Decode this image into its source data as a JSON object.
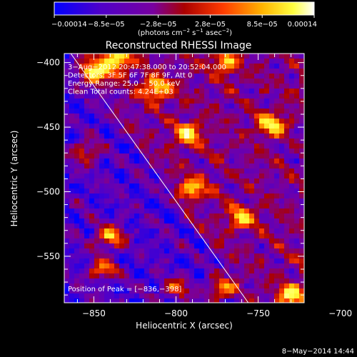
{
  "chart_data": {
    "type": "heatmap",
    "title": "Reconstructed RHESSI Image",
    "xlabel": "Heliocentric X (arcsec)",
    "ylabel": "Heliocentric Y (arcsec)",
    "xlim": [
      -868,
      -722
    ],
    "ylim": [
      -586,
      -393
    ],
    "x_ticks": [
      -850,
      -800,
      -750,
      -700
    ],
    "x_tick_labels": [
      "−850",
      "−800",
      "−750",
      "−700"
    ],
    "y_ticks": [
      -400,
      -450,
      -500,
      -550
    ],
    "y_tick_labels": [
      "−400",
      "−450",
      "−500",
      "−550"
    ],
    "colorbar": {
      "range": [
        -0.00014,
        0.00014
      ],
      "tick_labels": [
        "−0.00014",
        "−8.5e−05",
        "−2.8e−05",
        "2.8e−05",
        "8.5e−05",
        "0.00014"
      ],
      "unit_main": "(photons cm",
      "unit_sup1": "−2",
      "unit_mid1": " s",
      "unit_sup2": "−1",
      "unit_mid2": " asec",
      "unit_sup3": "−2",
      "unit_end": ")",
      "colormap": [
        "#0000ff",
        "#5000c8",
        "#7800a0",
        "#aa0000",
        "#ff3c00",
        "#ffb400",
        "#ffff40",
        "#ffffff"
      ]
    },
    "annotations": [
      "3−Aug−2012 20:47:38.000 to 20:52:04.000",
      "Detectors: 3F 5F 6F 7F 8F 9F, Att 0",
      "Energy Range: 25.0 − 50.0 keV",
      "Clean    Total counts: 4.24E+03"
    ],
    "peak_label": "Position of Peak = [−836,−398]",
    "peak": [
      -836,
      -398
    ],
    "limb_line": [
      [
        -864,
        -393
      ],
      [
        -756,
        -586
      ]
    ],
    "grid": false,
    "legend": "none"
  },
  "footer": {
    "date": "8−May−2014 14:44"
  }
}
